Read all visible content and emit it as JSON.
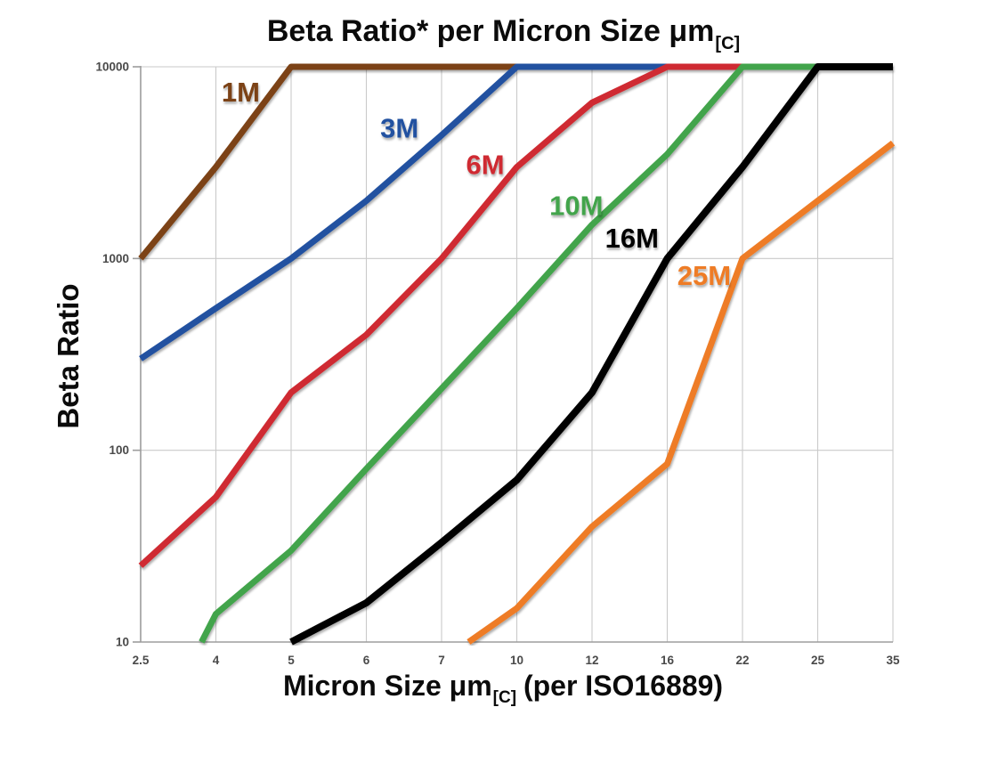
{
  "title": {
    "main": "Beta Ratio* per Micron Size μm",
    "subscript": "[C]"
  },
  "y_axis": {
    "label": "Beta Ratio"
  },
  "x_axis": {
    "label_prefix": "Micron Size μm",
    "label_subscript": "[C]",
    "label_suffix": " (per ISO16889)"
  },
  "chart_data": {
    "type": "line",
    "title": "Beta Ratio* per Micron Size μm[C]",
    "xlabel": "Micron Size μm[C] (per ISO16889)",
    "ylabel": "Beta Ratio",
    "x_scale": "categorical-evenly-spaced",
    "y_scale": "log10",
    "ylim": [
      10,
      10000
    ],
    "grid": true,
    "grid_color": "#CACACA",
    "axis_color": "#9D9D9D",
    "tick_color": "#4A4A4A",
    "legend": "inline-labels",
    "categories": [
      "2.5",
      "4",
      "5",
      "6",
      "7",
      "10",
      "12",
      "16",
      "22",
      "25",
      "35"
    ],
    "y_ticks": [
      10000,
      1000,
      100,
      10
    ],
    "series": [
      {
        "name": "1M",
        "color": "#7B4319",
        "width": 7,
        "points": [
          [
            0,
            1000
          ],
          [
            1,
            3000
          ],
          [
            2,
            10000
          ],
          [
            10,
            10000
          ]
        ]
      },
      {
        "name": "3M",
        "color": "#2051A0",
        "width": 7,
        "points": [
          [
            0,
            300
          ],
          [
            1,
            550
          ],
          [
            2,
            1000
          ],
          [
            3,
            2000
          ],
          [
            4,
            4400
          ],
          [
            5,
            10000
          ],
          [
            10,
            10000
          ]
        ]
      },
      {
        "name": "6M",
        "color": "#CF2B30",
        "width": 7,
        "points": [
          [
            0,
            25
          ],
          [
            1,
            57
          ],
          [
            2,
            200
          ],
          [
            3,
            400
          ],
          [
            4,
            1000
          ],
          [
            5,
            3000
          ],
          [
            6,
            6500
          ],
          [
            7,
            10000
          ],
          [
            10,
            10000
          ]
        ]
      },
      {
        "name": "10M",
        "color": "#43A44B",
        "width": 7,
        "points": [
          [
            0.81,
            10
          ],
          [
            1,
            14
          ],
          [
            2,
            30
          ],
          [
            3,
            80
          ],
          [
            4,
            210
          ],
          [
            5,
            550
          ],
          [
            6,
            1500
          ],
          [
            7,
            3500
          ],
          [
            8,
            10000
          ],
          [
            10,
            10000
          ]
        ]
      },
      {
        "name": "16M",
        "color": "#060606",
        "width": 8,
        "points": [
          [
            2,
            10
          ],
          [
            3,
            16
          ],
          [
            4,
            33
          ],
          [
            5,
            70
          ],
          [
            6,
            200
          ],
          [
            7,
            1000
          ],
          [
            8,
            3000
          ],
          [
            9,
            10000
          ],
          [
            10,
            10000
          ]
        ]
      },
      {
        "name": "25M",
        "color": "#EE7C25",
        "width": 7,
        "points": [
          [
            4.36,
            10
          ],
          [
            5,
            15
          ],
          [
            6,
            40
          ],
          [
            7,
            85
          ],
          [
            8,
            1000
          ],
          [
            9,
            2000
          ],
          [
            10,
            4000
          ]
        ]
      }
    ],
    "annotations": [
      {
        "text": "1M",
        "color": "#7B4319",
        "x": 1.33,
        "value": 7400
      },
      {
        "text": "3M",
        "color": "#2051A0",
        "x": 3.44,
        "value": 4800
      },
      {
        "text": "6M",
        "color": "#CF2B30",
        "x": 4.58,
        "value": 3100
      },
      {
        "text": "10M",
        "color": "#43A44B",
        "x": 5.79,
        "value": 1900
      },
      {
        "text": "16M",
        "color": "#060606",
        "x": 6.53,
        "value": 1280
      },
      {
        "text": "25M",
        "color": "#EE7C25",
        "x": 7.49,
        "value": 820
      }
    ]
  }
}
